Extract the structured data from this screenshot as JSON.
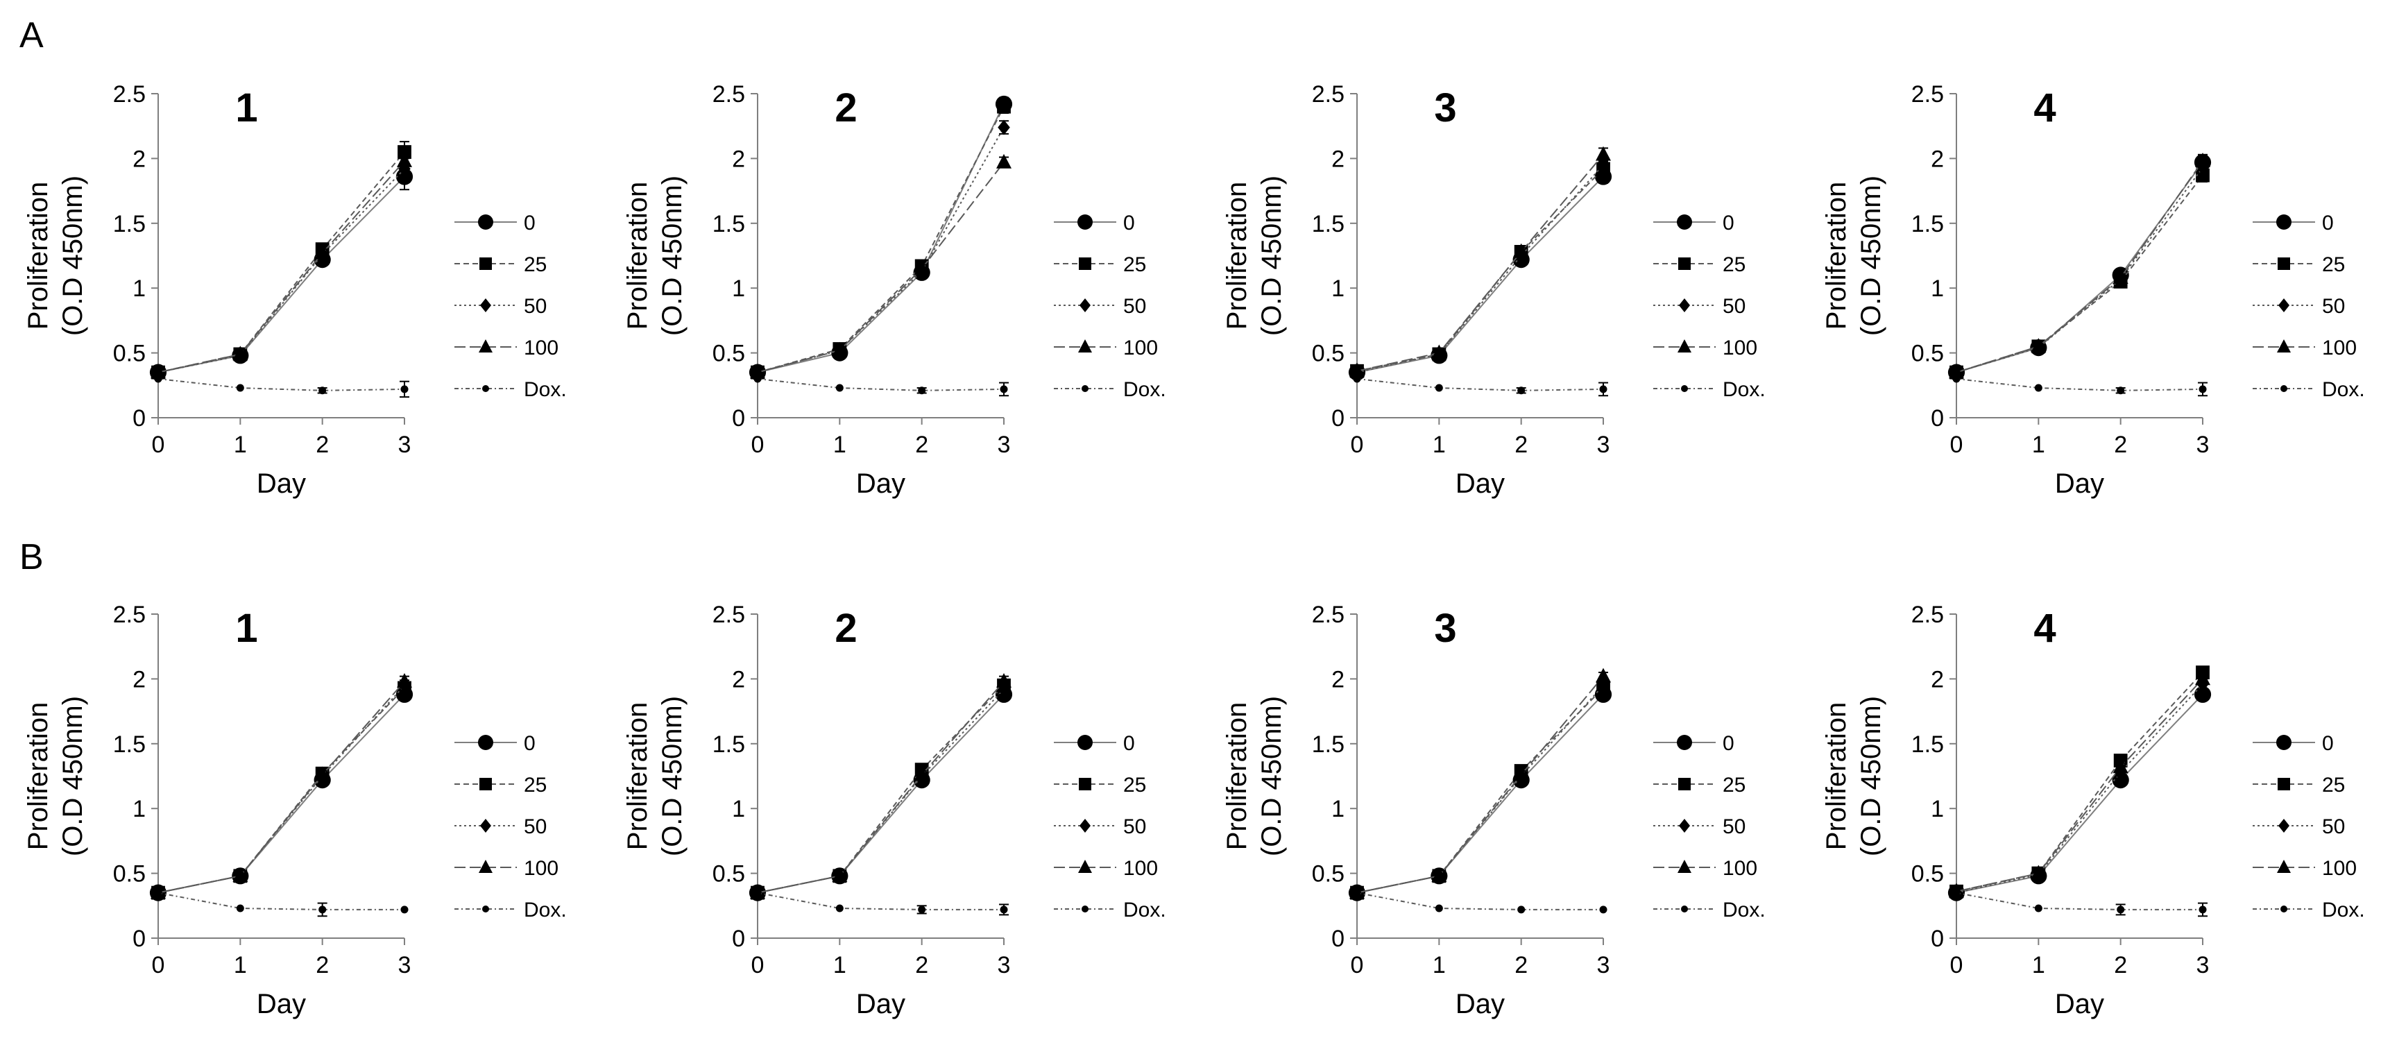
{
  "panels": [
    {
      "letter": "A"
    },
    {
      "letter": "B"
    }
  ],
  "axis_text": {
    "xlabel": "Day",
    "ylabel_line1": "Proliferation",
    "ylabel_line2": "(O.D 450nm)"
  },
  "styles": {
    "0": {
      "dash": "",
      "marker": "circle",
      "color": "#000000",
      "line_color": "#7f7f7f"
    },
    "25": {
      "dash": "8 5",
      "marker": "square",
      "color": "#000000",
      "line_color": "#5a5a5a"
    },
    "50": {
      "dash": "3 4",
      "marker": "diamond",
      "color": "#000000",
      "line_color": "#5a5a5a"
    },
    "100": {
      "dash": "16 6",
      "marker": "triangle",
      "color": "#000000",
      "line_color": "#5a5a5a"
    },
    "Dox.": {
      "dash": "6 4 2 4",
      "marker": "dot",
      "color": "#000000",
      "line_color": "#5a5a5a"
    }
  },
  "chart_data": [
    {
      "panel": "A",
      "type": "line",
      "title": "1",
      "xlabel": "Day",
      "ylabel": "Proliferation (O.D 450nm)",
      "x": [
        0,
        1,
        2,
        3
      ],
      "xlim": [
        0,
        3
      ],
      "ylim": [
        0,
        2.5
      ],
      "xticks": [
        "0",
        "1",
        "2",
        "3"
      ],
      "yticks": [
        "0",
        "0.5",
        "1",
        "1.5",
        "2",
        "2.5"
      ],
      "series": [
        {
          "name": "0",
          "values": [
            0.35,
            0.48,
            1.22,
            1.86
          ],
          "err": [
            0.02,
            0.02,
            0.03,
            0.1
          ]
        },
        {
          "name": "25",
          "values": [
            0.35,
            0.49,
            1.3,
            2.05
          ],
          "err": [
            0.02,
            0.02,
            0.03,
            0.08
          ]
        },
        {
          "name": "50",
          "values": [
            0.35,
            0.48,
            1.26,
            1.92
          ],
          "err": [
            0.02,
            0.02,
            0.03,
            0.08
          ]
        },
        {
          "name": "100",
          "values": [
            0.35,
            0.49,
            1.27,
            1.98
          ],
          "err": [
            0.02,
            0.02,
            0.03,
            0.08
          ]
        },
        {
          "name": "Dox.",
          "values": [
            0.3,
            0.23,
            0.21,
            0.22
          ],
          "err": [
            0.01,
            0.01,
            0.02,
            0.06
          ]
        }
      ]
    },
    {
      "panel": "A",
      "type": "line",
      "title": "2",
      "xlabel": "Day",
      "ylabel": "Proliferation (O.D 450nm)",
      "x": [
        0,
        1,
        2,
        3
      ],
      "xlim": [
        0,
        3
      ],
      "ylim": [
        0,
        2.5
      ],
      "xticks": [
        "0",
        "1",
        "2",
        "3"
      ],
      "yticks": [
        "0",
        "0.5",
        "1",
        "1.5",
        "2",
        "2.5"
      ],
      "series": [
        {
          "name": "0",
          "values": [
            0.35,
            0.5,
            1.12,
            2.42
          ],
          "err": [
            0.02,
            0.02,
            0.03,
            0.05
          ]
        },
        {
          "name": "25",
          "values": [
            0.35,
            0.53,
            1.17,
            2.4
          ],
          "err": [
            0.02,
            0.02,
            0.03,
            0.05
          ]
        },
        {
          "name": "50",
          "values": [
            0.35,
            0.52,
            1.13,
            2.24
          ],
          "err": [
            0.02,
            0.02,
            0.03,
            0.05
          ]
        },
        {
          "name": "100",
          "values": [
            0.35,
            0.52,
            1.15,
            1.97
          ],
          "err": [
            0.02,
            0.02,
            0.03,
            0.04
          ]
        },
        {
          "name": "Dox.",
          "values": [
            0.3,
            0.23,
            0.21,
            0.22
          ],
          "err": [
            0.01,
            0.01,
            0.02,
            0.05
          ]
        }
      ]
    },
    {
      "panel": "A",
      "type": "line",
      "title": "3",
      "xlabel": "Day",
      "ylabel": "Proliferation (O.D 450nm)",
      "x": [
        0,
        1,
        2,
        3
      ],
      "xlim": [
        0,
        3
      ],
      "ylim": [
        0,
        2.5
      ],
      "xticks": [
        "0",
        "1",
        "2",
        "3"
      ],
      "yticks": [
        "0",
        "0.5",
        "1",
        "1.5",
        "2",
        "2.5"
      ],
      "series": [
        {
          "name": "0",
          "values": [
            0.35,
            0.48,
            1.22,
            1.86
          ],
          "err": [
            0.02,
            0.02,
            0.03,
            0.05
          ]
        },
        {
          "name": "25",
          "values": [
            0.36,
            0.49,
            1.28,
            1.92
          ],
          "err": [
            0.02,
            0.02,
            0.03,
            0.05
          ]
        },
        {
          "name": "50",
          "values": [
            0.35,
            0.49,
            1.25,
            1.95
          ],
          "err": [
            0.02,
            0.02,
            0.03,
            0.05
          ]
        },
        {
          "name": "100",
          "values": [
            0.36,
            0.5,
            1.28,
            2.03
          ],
          "err": [
            0.02,
            0.02,
            0.03,
            0.05
          ]
        },
        {
          "name": "Dox.",
          "values": [
            0.3,
            0.23,
            0.21,
            0.22
          ],
          "err": [
            0.01,
            0.01,
            0.02,
            0.05
          ]
        }
      ]
    },
    {
      "panel": "A",
      "type": "line",
      "title": "4",
      "xlabel": "Day",
      "ylabel": "Proliferation (O.D 450nm)",
      "x": [
        0,
        1,
        2,
        3
      ],
      "xlim": [
        0,
        3
      ],
      "ylim": [
        0,
        2.5
      ],
      "xticks": [
        "0",
        "1",
        "2",
        "3"
      ],
      "yticks": [
        "0",
        "0.5",
        "1",
        "1.5",
        "2",
        "2.5"
      ],
      "series": [
        {
          "name": "0",
          "values": [
            0.35,
            0.54,
            1.1,
            1.97
          ],
          "err": [
            0.02,
            0.02,
            0.03,
            0.05
          ]
        },
        {
          "name": "25",
          "values": [
            0.35,
            0.55,
            1.05,
            1.87
          ],
          "err": [
            0.02,
            0.02,
            0.03,
            0.05
          ]
        },
        {
          "name": "50",
          "values": [
            0.35,
            0.54,
            1.07,
            1.93
          ],
          "err": [
            0.02,
            0.02,
            0.03,
            0.05
          ]
        },
        {
          "name": "100",
          "values": [
            0.35,
            0.55,
            1.08,
            1.98
          ],
          "err": [
            0.02,
            0.02,
            0.03,
            0.05
          ]
        },
        {
          "name": "Dox.",
          "values": [
            0.3,
            0.23,
            0.21,
            0.22
          ],
          "err": [
            0.01,
            0.01,
            0.02,
            0.05
          ]
        }
      ]
    },
    {
      "panel": "B",
      "type": "line",
      "title": "1",
      "xlabel": "Day",
      "ylabel": "Proliferation (O.D 450nm)",
      "x": [
        0,
        1,
        2,
        3
      ],
      "xlim": [
        0,
        3
      ],
      "ylim": [
        0,
        2.5
      ],
      "xticks": [
        "0",
        "1",
        "2",
        "3"
      ],
      "yticks": [
        "0",
        "0.5",
        "1",
        "1.5",
        "2",
        "2.5"
      ],
      "series": [
        {
          "name": "0",
          "values": [
            0.35,
            0.48,
            1.22,
            1.88
          ],
          "err": [
            0.02,
            0.02,
            0.03,
            0.04
          ]
        },
        {
          "name": "25",
          "values": [
            0.35,
            0.48,
            1.27,
            1.93
          ],
          "err": [
            0.02,
            0.02,
            0.03,
            0.04
          ]
        },
        {
          "name": "50",
          "values": [
            0.35,
            0.48,
            1.25,
            1.95
          ],
          "err": [
            0.02,
            0.02,
            0.03,
            0.04
          ]
        },
        {
          "name": "100",
          "values": [
            0.35,
            0.48,
            1.26,
            1.98
          ],
          "err": [
            0.02,
            0.02,
            0.03,
            0.04
          ]
        },
        {
          "name": "Dox.",
          "values": [
            0.35,
            0.23,
            0.22,
            0.22
          ],
          "err": [
            0.01,
            0.01,
            0.05,
            0.01
          ]
        }
      ]
    },
    {
      "panel": "B",
      "type": "line",
      "title": "2",
      "xlabel": "Day",
      "ylabel": "Proliferation (O.D 450nm)",
      "x": [
        0,
        1,
        2,
        3
      ],
      "xlim": [
        0,
        3
      ],
      "ylim": [
        0,
        2.5
      ],
      "xticks": [
        "0",
        "1",
        "2",
        "3"
      ],
      "yticks": [
        "0",
        "0.5",
        "1",
        "1.5",
        "2",
        "2.5"
      ],
      "series": [
        {
          "name": "0",
          "values": [
            0.35,
            0.48,
            1.22,
            1.88
          ],
          "err": [
            0.02,
            0.02,
            0.03,
            0.04
          ]
        },
        {
          "name": "25",
          "values": [
            0.35,
            0.48,
            1.3,
            1.95
          ],
          "err": [
            0.02,
            0.02,
            0.03,
            0.04
          ]
        },
        {
          "name": "50",
          "values": [
            0.35,
            0.48,
            1.25,
            1.92
          ],
          "err": [
            0.02,
            0.02,
            0.03,
            0.04
          ]
        },
        {
          "name": "100",
          "values": [
            0.35,
            0.48,
            1.26,
            1.98
          ],
          "err": [
            0.02,
            0.02,
            0.03,
            0.04
          ]
        },
        {
          "name": "Dox.",
          "values": [
            0.35,
            0.23,
            0.22,
            0.22
          ],
          "err": [
            0.01,
            0.01,
            0.03,
            0.04
          ]
        }
      ]
    },
    {
      "panel": "B",
      "type": "line",
      "title": "3",
      "xlabel": "Day",
      "ylabel": "Proliferation (O.D 450nm)",
      "x": [
        0,
        1,
        2,
        3
      ],
      "xlim": [
        0,
        3
      ],
      "ylim": [
        0,
        2.5
      ],
      "xticks": [
        "0",
        "1",
        "2",
        "3"
      ],
      "yticks": [
        "0",
        "0.5",
        "1",
        "1.5",
        "2",
        "2.5"
      ],
      "series": [
        {
          "name": "0",
          "values": [
            0.35,
            0.48,
            1.22,
            1.88
          ],
          "err": [
            0.02,
            0.02,
            0.03,
            0.03
          ]
        },
        {
          "name": "25",
          "values": [
            0.35,
            0.48,
            1.29,
            1.93
          ],
          "err": [
            0.02,
            0.02,
            0.03,
            0.03
          ]
        },
        {
          "name": "50",
          "values": [
            0.35,
            0.48,
            1.25,
            1.95
          ],
          "err": [
            0.02,
            0.02,
            0.03,
            0.03
          ]
        },
        {
          "name": "100",
          "values": [
            0.35,
            0.48,
            1.26,
            2.02
          ],
          "err": [
            0.02,
            0.02,
            0.03,
            0.03
          ]
        },
        {
          "name": "Dox.",
          "values": [
            0.35,
            0.23,
            0.22,
            0.22
          ],
          "err": [
            0.01,
            0.01,
            0.01,
            0.01
          ]
        }
      ]
    },
    {
      "panel": "B",
      "type": "line",
      "title": "4",
      "xlabel": "Day",
      "ylabel": "Proliferation (O.D 450nm)",
      "x": [
        0,
        1,
        2,
        3
      ],
      "xlim": [
        0,
        3
      ],
      "ylim": [
        0,
        2.5
      ],
      "xticks": [
        "0",
        "1",
        "2",
        "3"
      ],
      "yticks": [
        "0",
        "0.5",
        "1",
        "1.5",
        "2",
        "2.5"
      ],
      "series": [
        {
          "name": "0",
          "values": [
            0.35,
            0.48,
            1.22,
            1.88
          ],
          "err": [
            0.02,
            0.02,
            0.03,
            0.04
          ]
        },
        {
          "name": "25",
          "values": [
            0.36,
            0.5,
            1.37,
            2.05
          ],
          "err": [
            0.02,
            0.02,
            0.03,
            0.04
          ]
        },
        {
          "name": "50",
          "values": [
            0.35,
            0.49,
            1.28,
            1.96
          ],
          "err": [
            0.02,
            0.02,
            0.03,
            0.04
          ]
        },
        {
          "name": "100",
          "values": [
            0.36,
            0.5,
            1.32,
            2.0
          ],
          "err": [
            0.02,
            0.02,
            0.03,
            0.04
          ]
        },
        {
          "name": "Dox.",
          "values": [
            0.35,
            0.23,
            0.22,
            0.22
          ],
          "err": [
            0.01,
            0.01,
            0.04,
            0.05
          ]
        }
      ]
    }
  ]
}
